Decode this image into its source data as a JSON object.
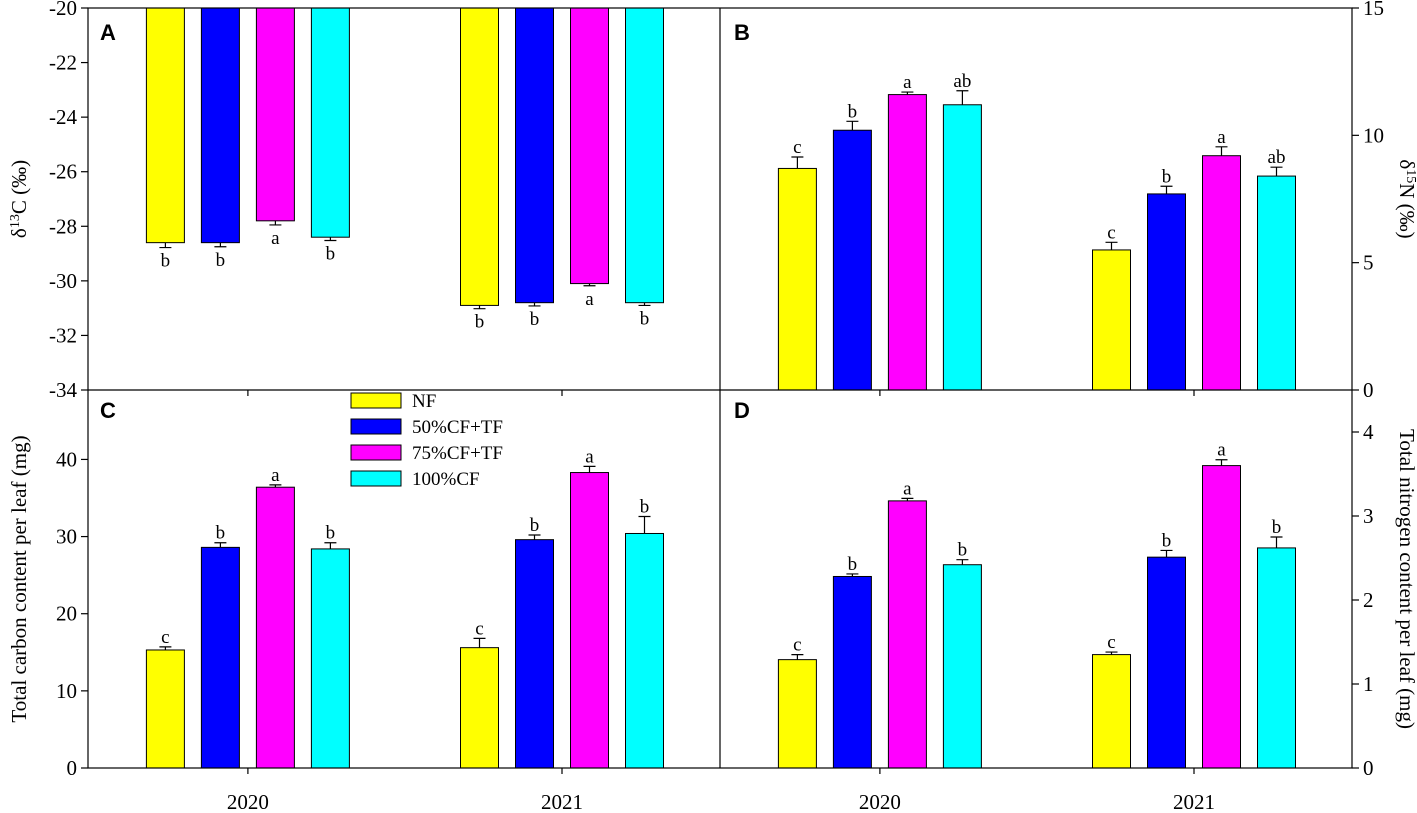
{
  "categories": [
    "2020",
    "2021"
  ],
  "series_names": [
    "NF",
    "50%CF+TF",
    "75%CF+TF",
    "100%CF"
  ],
  "colors": [
    "#ffff00",
    "#0000ff",
    "#ff00ff",
    "#00ffff"
  ],
  "legend_entries": [
    {
      "label": "NF",
      "color": "#ffff00"
    },
    {
      "label": "50%CF+TF",
      "color": "#0000ff"
    },
    {
      "label": "75%CF+TF",
      "color": "#ff00ff"
    },
    {
      "label": "100%CF",
      "color": "#00ffff"
    }
  ],
  "chart_data": [
    {
      "panel": "A",
      "type": "bar",
      "axis_side": "left",
      "ylabel": "δ13C (‰)",
      "ylim": [
        -34,
        -20
      ],
      "yticks": [
        -34,
        -32,
        -30,
        -28,
        -26,
        -24,
        -22,
        -20
      ],
      "baseline": -20,
      "letters_below": true,
      "show_xticklabels": false,
      "categories": [
        "2020",
        "2021"
      ],
      "series": [
        {
          "name": "NF",
          "values": [
            -28.6,
            -30.9
          ],
          "errors": [
            0.18,
            0.12
          ],
          "letters": [
            "b",
            "b"
          ]
        },
        {
          "name": "50%CF+TF",
          "values": [
            -28.6,
            -30.8
          ],
          "errors": [
            0.15,
            0.12
          ],
          "letters": [
            "b",
            "b"
          ]
        },
        {
          "name": "75%CF+TF",
          "values": [
            -27.8,
            -30.1
          ],
          "errors": [
            0.15,
            0.08
          ],
          "letters": [
            "a",
            "a"
          ]
        },
        {
          "name": "100%CF",
          "values": [
            -28.4,
            -30.8
          ],
          "errors": [
            0.12,
            0.1
          ],
          "letters": [
            "b",
            "b"
          ]
        }
      ]
    },
    {
      "panel": "B",
      "type": "bar",
      "axis_side": "right",
      "ylabel": "δ15N (‰)",
      "ylim": [
        0,
        15
      ],
      "yticks": [
        0,
        5,
        10,
        15
      ],
      "baseline": 0,
      "letters_below": false,
      "show_xticklabels": false,
      "categories": [
        "2020",
        "2021"
      ],
      "series": [
        {
          "name": "NF",
          "values": [
            8.7,
            5.5
          ],
          "errors": [
            0.45,
            0.3
          ],
          "letters": [
            "c",
            "c"
          ]
        },
        {
          "name": "50%CF+TF",
          "values": [
            10.2,
            7.7
          ],
          "errors": [
            0.35,
            0.3
          ],
          "letters": [
            "b",
            "b"
          ]
        },
        {
          "name": "75%CF+TF",
          "values": [
            11.6,
            9.2
          ],
          "errors": [
            0.1,
            0.35
          ],
          "letters": [
            "a",
            "a"
          ]
        },
        {
          "name": "100%CF",
          "values": [
            11.2,
            8.4
          ],
          "errors": [
            0.55,
            0.35
          ],
          "letters": [
            "ab",
            "ab"
          ]
        }
      ]
    },
    {
      "panel": "C",
      "type": "bar",
      "axis_side": "left",
      "ylabel": "Total carbon content per leaf (mg)",
      "ylim": [
        0,
        49
      ],
      "yticks": [
        0,
        10,
        20,
        30,
        40
      ],
      "baseline": 0,
      "letters_below": false,
      "show_xticklabels": true,
      "categories": [
        "2020",
        "2021"
      ],
      "series": [
        {
          "name": "NF",
          "values": [
            15.3,
            15.6
          ],
          "errors": [
            0.4,
            1.2
          ],
          "letters": [
            "c",
            "c"
          ]
        },
        {
          "name": "50%CF+TF",
          "values": [
            28.6,
            29.6
          ],
          "errors": [
            0.6,
            0.6
          ],
          "letters": [
            "b",
            "b"
          ]
        },
        {
          "name": "75%CF+TF",
          "values": [
            36.4,
            38.3
          ],
          "errors": [
            0.3,
            0.8
          ],
          "letters": [
            "a",
            "a"
          ]
        },
        {
          "name": "100%CF",
          "values": [
            28.4,
            30.4
          ],
          "errors": [
            0.8,
            2.2
          ],
          "letters": [
            "b",
            "b"
          ]
        }
      ]
    },
    {
      "panel": "D",
      "type": "bar",
      "axis_side": "right",
      "ylabel": "Total nitrogen content per leaf (mg)",
      "ylim": [
        0,
        4.5
      ],
      "yticks": [
        0,
        1,
        2,
        3,
        4
      ],
      "baseline": 0,
      "letters_below": false,
      "show_xticklabels": true,
      "categories": [
        "2020",
        "2021"
      ],
      "series": [
        {
          "name": "NF",
          "values": [
            1.29,
            1.35
          ],
          "errors": [
            0.06,
            0.03
          ],
          "letters": [
            "c",
            "c"
          ]
        },
        {
          "name": "50%CF+TF",
          "values": [
            2.28,
            2.51
          ],
          "errors": [
            0.03,
            0.08
          ],
          "letters": [
            "b",
            "b"
          ]
        },
        {
          "name": "75%CF+TF",
          "values": [
            3.18,
            3.6
          ],
          "errors": [
            0.03,
            0.07
          ],
          "letters": [
            "a",
            "a"
          ]
        },
        {
          "name": "100%CF",
          "values": [
            2.42,
            2.62
          ],
          "errors": [
            0.06,
            0.13
          ],
          "letters": [
            "b",
            "b"
          ]
        }
      ]
    }
  ]
}
